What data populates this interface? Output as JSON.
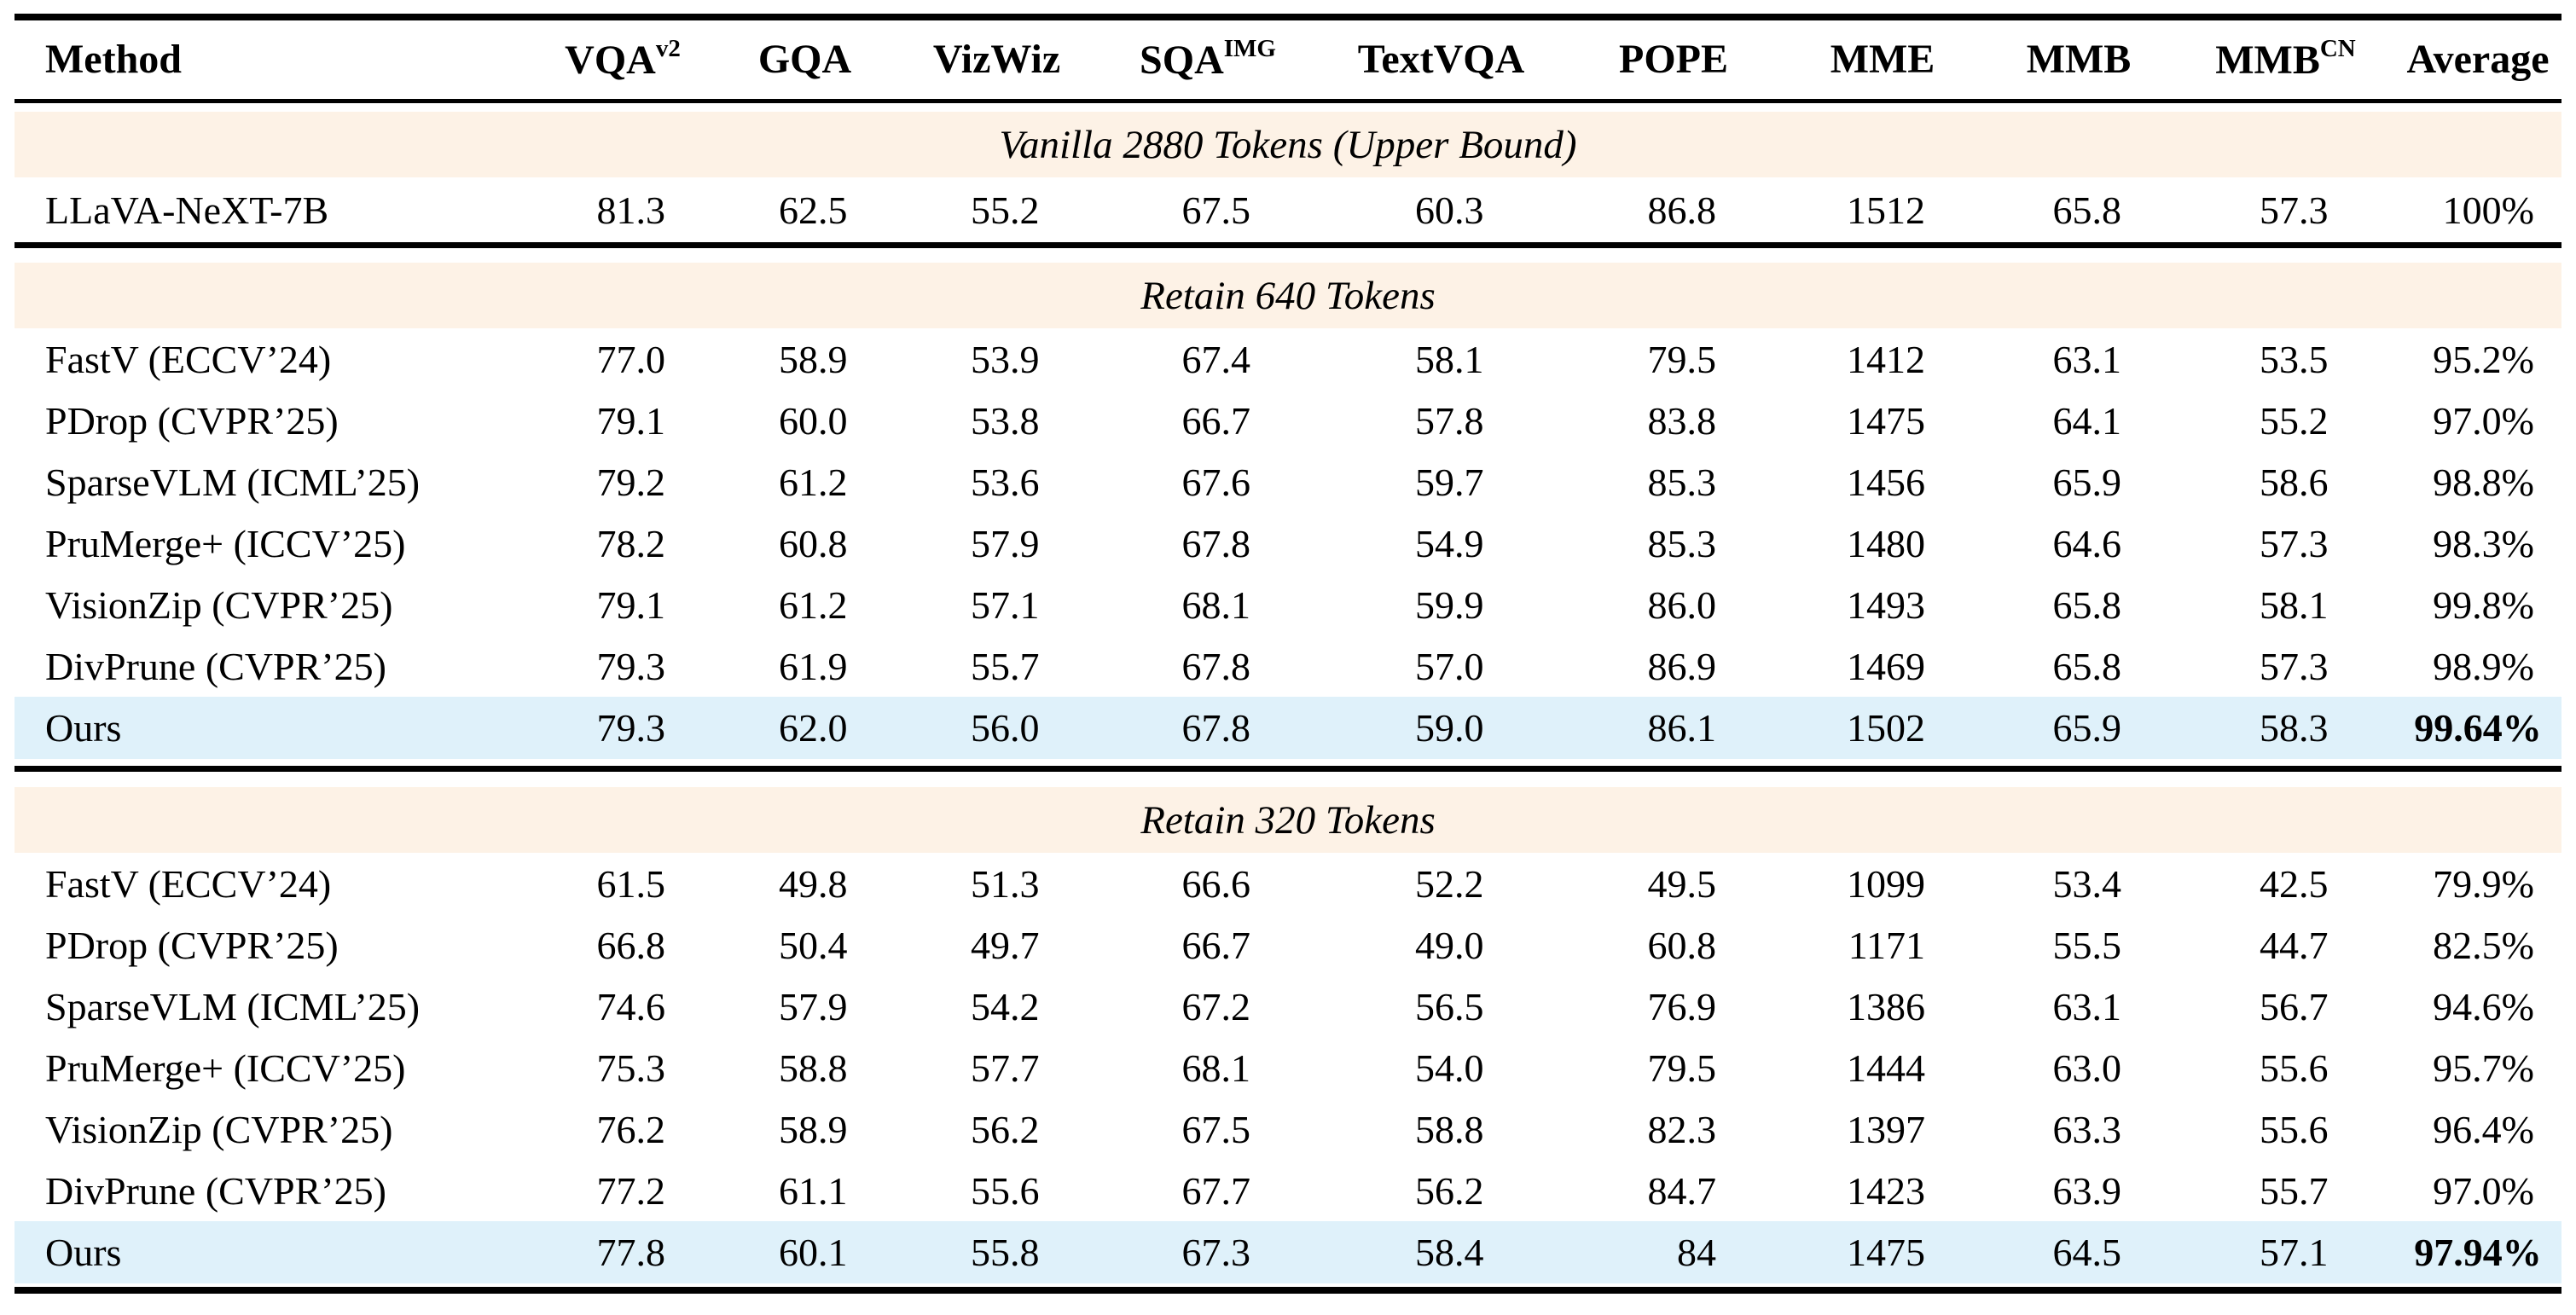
{
  "table": {
    "colors": {
      "section_bg": "#fdf2e6",
      "ours_bg": "#dff1fa",
      "rule_color": "#000000"
    },
    "columns": [
      {
        "label": "Method",
        "sup": ""
      },
      {
        "label": "VQA",
        "sup": "v2"
      },
      {
        "label": "GQA",
        "sup": ""
      },
      {
        "label": "VizWiz",
        "sup": ""
      },
      {
        "label": "SQA",
        "sup": "IMG"
      },
      {
        "label": "TextVQA",
        "sup": ""
      },
      {
        "label": "POPE",
        "sup": ""
      },
      {
        "label": "MME",
        "sup": ""
      },
      {
        "label": "MMB",
        "sup": ""
      },
      {
        "label": "MMB",
        "sup": "CN"
      },
      {
        "label": "Average",
        "sup": ""
      }
    ],
    "sections": [
      {
        "title": "Vanilla 2880 Tokens (Upper Bound)",
        "rows": [
          {
            "method": "LLaVA-NeXT-7B",
            "values": [
              "81.3",
              "62.5",
              "55.2",
              "67.5",
              "60.3",
              "86.8",
              "1512",
              "65.8",
              "57.3",
              "100%"
            ],
            "ours": false,
            "bold_avg": false
          }
        ]
      },
      {
        "title": "Retain 640 Tokens",
        "rows": [
          {
            "method": "FastV (ECCV’24)",
            "values": [
              "77.0",
              "58.9",
              "53.9",
              "67.4",
              "58.1",
              "79.5",
              "1412",
              "63.1",
              "53.5",
              "95.2%"
            ],
            "ours": false,
            "bold_avg": false
          },
          {
            "method": "PDrop (CVPR’25)",
            "values": [
              "79.1",
              "60.0",
              "53.8",
              "66.7",
              "57.8",
              "83.8",
              "1475",
              "64.1",
              "55.2",
              "97.0%"
            ],
            "ours": false,
            "bold_avg": false
          },
          {
            "method": "SparseVLM (ICML’25)",
            "values": [
              "79.2",
              "61.2",
              "53.6",
              "67.6",
              "59.7",
              "85.3",
              "1456",
              "65.9",
              "58.6",
              "98.8%"
            ],
            "ours": false,
            "bold_avg": false
          },
          {
            "method": "PruMerge+ (ICCV’25)",
            "values": [
              "78.2",
              "60.8",
              "57.9",
              "67.8",
              "54.9",
              "85.3",
              "1480",
              "64.6",
              "57.3",
              "98.3%"
            ],
            "ours": false,
            "bold_avg": false
          },
          {
            "method": "VisionZip (CVPR’25)",
            "values": [
              "79.1",
              "61.2",
              "57.1",
              "68.1",
              "59.9",
              "86.0",
              "1493",
              "65.8",
              "58.1",
              "99.8%"
            ],
            "ours": false,
            "bold_avg": false
          },
          {
            "method": "DivPrune (CVPR’25)",
            "values": [
              "79.3",
              "61.9",
              "55.7",
              "67.8",
              "57.0",
              "86.9",
              "1469",
              "65.8",
              "57.3",
              "98.9%"
            ],
            "ours": false,
            "bold_avg": false
          },
          {
            "method": "Ours",
            "values": [
              "79.3",
              "62.0",
              "56.0",
              "67.8",
              "59.0",
              "86.1",
              "1502",
              "65.9",
              "58.3",
              "99.64%"
            ],
            "ours": true,
            "bold_avg": true
          }
        ]
      },
      {
        "title": "Retain 320 Tokens",
        "rows": [
          {
            "method": "FastV (ECCV’24)",
            "values": [
              "61.5",
              "49.8",
              "51.3",
              "66.6",
              "52.2",
              "49.5",
              "1099",
              "53.4",
              "42.5",
              "79.9%"
            ],
            "ours": false,
            "bold_avg": false
          },
          {
            "method": "PDrop (CVPR’25)",
            "values": [
              "66.8",
              "50.4",
              "49.7",
              "66.7",
              "49.0",
              "60.8",
              "1171",
              "55.5",
              "44.7",
              "82.5%"
            ],
            "ours": false,
            "bold_avg": false
          },
          {
            "method": "SparseVLM (ICML’25)",
            "values": [
              "74.6",
              "57.9",
              "54.2",
              "67.2",
              "56.5",
              "76.9",
              "1386",
              "63.1",
              "56.7",
              "94.6%"
            ],
            "ours": false,
            "bold_avg": false
          },
          {
            "method": "PruMerge+ (ICCV’25)",
            "values": [
              "75.3",
              "58.8",
              "57.7",
              "68.1",
              "54.0",
              "79.5",
              "1444",
              "63.0",
              "55.6",
              "95.7%"
            ],
            "ours": false,
            "bold_avg": false
          },
          {
            "method": "VisionZip (CVPR’25)",
            "values": [
              "76.2",
              "58.9",
              "56.2",
              "67.5",
              "58.8",
              "82.3",
              "1397",
              "63.3",
              "55.6",
              "96.4%"
            ],
            "ours": false,
            "bold_avg": false
          },
          {
            "method": "DivPrune (CVPR’25)",
            "values": [
              "77.2",
              "61.1",
              "55.6",
              "67.7",
              "56.2",
              "84.7",
              "1423",
              "63.9",
              "55.7",
              "97.0%"
            ],
            "ours": false,
            "bold_avg": false
          },
          {
            "method": "Ours",
            "values": [
              "77.8",
              "60.1",
              "55.8",
              "67.3",
              "58.4",
              "84",
              "1475",
              "64.5",
              "57.1",
              "97.94%"
            ],
            "ours": true,
            "bold_avg": true
          }
        ]
      }
    ]
  }
}
